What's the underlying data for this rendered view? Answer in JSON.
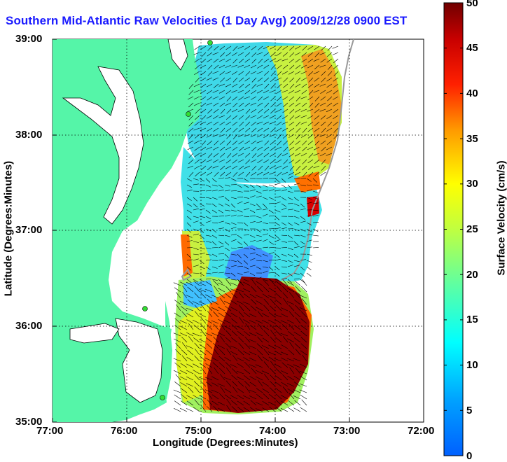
{
  "title": "Southern Mid-Atlantic Raw Velocities (1 Day Avg) 2009/12/28 0900 EST",
  "axes": {
    "xlabel": "Longitude (Degrees:Minutes)",
    "ylabel": "Latitude (Degrees:Minutes)",
    "x_ticks": [
      "77:00",
      "76:00",
      "75:00",
      "74:00",
      "73:00",
      "72:00"
    ],
    "y_ticks": [
      "39:00",
      "38:00",
      "37:00",
      "36:00",
      "35:00"
    ],
    "xlim": [
      -77,
      -72
    ],
    "ylim": [
      35,
      39
    ],
    "grid": "dotted"
  },
  "colorbar": {
    "label": "Surface Velocity (cm/s)",
    "ticks": [
      "50",
      "45",
      "40",
      "35",
      "30",
      "25",
      "20",
      "15",
      "10",
      "5",
      "0"
    ],
    "range": [
      0,
      50
    ],
    "colormap": "jet",
    "placement": "right"
  },
  "colors": {
    "land": "#55f5a8",
    "water_bg": "#ffffff",
    "title": "#1a1aff",
    "station": "#33dd33"
  },
  "icons": {
    "station_markers": "green-dot"
  }
}
